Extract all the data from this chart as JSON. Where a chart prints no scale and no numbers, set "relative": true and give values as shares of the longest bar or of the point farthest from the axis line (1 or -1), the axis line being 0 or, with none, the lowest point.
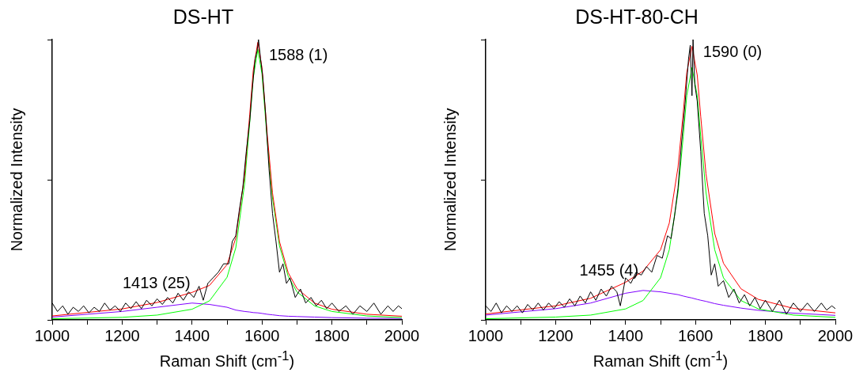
{
  "chart_data": [
    {
      "type": "line",
      "title": "DS-HT",
      "xlabel": "Raman Shift (cm$^{-1}$)",
      "ylabel": "Normalized Intensity",
      "relative": true,
      "grid": false,
      "legend": false,
      "marker": "none",
      "line_style": "solid",
      "xlim": [
        1000,
        2000
      ],
      "xticks": [
        1000,
        {
          "value": 1100,
          "label": null
        },
        1200,
        {
          "value": 1300,
          "label": null
        },
        1400,
        {
          "value": 1500,
          "label": null
        },
        1600,
        {
          "value": 1700,
          "label": null
        },
        1800,
        {
          "value": 1900,
          "label": null
        },
        2000
      ],
      "annotations": [
        {
          "text": "1588 (1)",
          "x": 1588,
          "y": 0.965
        },
        {
          "text": "1413 (25)",
          "x": 1413,
          "y": 0.06
        }
      ],
      "series": [
        {
          "color": "#000000",
          "x": [
            1000,
            1015,
            1030,
            1045,
            1060,
            1075,
            1090,
            1105,
            1120,
            1135,
            1150,
            1165,
            1180,
            1195,
            1210,
            1225,
            1240,
            1255,
            1270,
            1285,
            1300,
            1315,
            1330,
            1345,
            1360,
            1375,
            1390,
            1405,
            1420,
            1432,
            1445,
            1460,
            1475,
            1490,
            1505,
            1515,
            1525,
            1535,
            1545,
            1555,
            1565,
            1572,
            1580,
            1586,
            1590,
            1596,
            1602,
            1610,
            1620,
            1630,
            1640,
            1650,
            1660,
            1670,
            1680,
            1695,
            1710,
            1725,
            1740,
            1755,
            1770,
            1785,
            1800,
            1820,
            1840,
            1860,
            1880,
            1900,
            1920,
            1940,
            1960,
            1975,
            1990,
            2000
          ],
          "values": [
            0.06,
            0.03,
            0.05,
            0.02,
            0.045,
            0.03,
            0.05,
            0.025,
            0.045,
            0.03,
            0.06,
            0.035,
            0.05,
            0.03,
            0.06,
            0.04,
            0.065,
            0.04,
            0.07,
            0.05,
            0.075,
            0.055,
            0.08,
            0.06,
            0.095,
            0.07,
            0.1,
            0.08,
            0.12,
            0.07,
            0.13,
            0.15,
            0.17,
            0.2,
            0.2,
            0.28,
            0.3,
            0.39,
            0.47,
            0.6,
            0.71,
            0.82,
            0.93,
            0.96,
            1.0,
            0.93,
            0.87,
            0.74,
            0.54,
            0.38,
            0.28,
            0.17,
            0.2,
            0.13,
            0.15,
            0.08,
            0.11,
            0.06,
            0.08,
            0.05,
            0.07,
            0.04,
            0.06,
            0.03,
            0.05,
            0.02,
            0.05,
            0.03,
            0.06,
            0.02,
            0.05,
            0.03,
            0.05,
            0.04
          ]
        },
        {
          "color": "#ff0000",
          "x": [
            1000,
            1200,
            1300,
            1400,
            1450,
            1500,
            1525,
            1550,
            1565,
            1575,
            1588,
            1600,
            1615,
            1630,
            1650,
            1675,
            1700,
            1750,
            1800,
            1900,
            2000
          ],
          "values": [
            0.014,
            0.039,
            0.062,
            0.098,
            0.123,
            0.197,
            0.292,
            0.513,
            0.734,
            0.89,
            0.99,
            0.9,
            0.661,
            0.453,
            0.279,
            0.168,
            0.112,
            0.06,
            0.038,
            0.02,
            0.013
          ]
        },
        {
          "color": "#00ff00",
          "x": [
            1000,
            1200,
            1300,
            1400,
            1450,
            1500,
            1525,
            1550,
            1565,
            1575,
            1588,
            1600,
            1615,
            1630,
            1650,
            1675,
            1700,
            1750,
            1800,
            1900,
            2000
          ],
          "values": [
            0.004,
            0.009,
            0.017,
            0.038,
            0.068,
            0.152,
            0.257,
            0.483,
            0.706,
            0.864,
            0.965,
            0.877,
            0.641,
            0.435,
            0.264,
            0.155,
            0.1,
            0.05,
            0.03,
            0.014,
            0.008
          ]
        },
        {
          "color": "#8000ff",
          "x": [
            1000,
            1200,
            1300,
            1400,
            1450,
            1500,
            1525,
            1550,
            1565,
            1575,
            1588,
            1600,
            1615,
            1630,
            1650,
            1675,
            1700,
            1750,
            1800,
            1900,
            2000
          ],
          "values": [
            0.01,
            0.03,
            0.045,
            0.06,
            0.055,
            0.045,
            0.035,
            0.03,
            0.028,
            0.026,
            0.025,
            0.023,
            0.02,
            0.018,
            0.015,
            0.013,
            0.012,
            0.01,
            0.008,
            0.006,
            0.005
          ]
        }
      ]
    },
    {
      "type": "line",
      "title": "DS-HT-80-CH",
      "xlabel": "Raman Shift (cm$^{-1}$)",
      "ylabel": "Normalized Intensity",
      "relative": true,
      "grid": false,
      "legend": false,
      "marker": "none",
      "line_style": "solid",
      "xlim": [
        1000,
        2000
      ],
      "xticks": [
        1000,
        {
          "value": 1100,
          "label": null
        },
        1200,
        {
          "value": 1300,
          "label": null
        },
        1400,
        {
          "value": 1500,
          "label": null
        },
        1600,
        {
          "value": 1700,
          "label": null
        },
        1800,
        {
          "value": 1900,
          "label": null
        },
        2000
      ],
      "annotations": [
        {
          "text": "1590 (0)",
          "x": 1590,
          "y": 0.976
        },
        {
          "text": "1455 (4)",
          "x": 1455,
          "y": 0.105
        }
      ],
      "series": [
        {
          "color": "#000000",
          "x": [
            1000,
            1015,
            1030,
            1045,
            1060,
            1075,
            1090,
            1105,
            1120,
            1135,
            1150,
            1165,
            1180,
            1195,
            1210,
            1225,
            1240,
            1255,
            1270,
            1285,
            1300,
            1315,
            1330,
            1345,
            1360,
            1375,
            1385,
            1400,
            1415,
            1430,
            1445,
            1460,
            1475,
            1490,
            1505,
            1520,
            1530,
            1540,
            1550,
            1560,
            1570,
            1580,
            1585,
            1590,
            1593,
            1598,
            1605,
            1615,
            1625,
            1635,
            1645,
            1655,
            1665,
            1680,
            1695,
            1710,
            1725,
            1740,
            1755,
            1770,
            1785,
            1800,
            1820,
            1840,
            1860,
            1880,
            1900,
            1920,
            1940,
            1960,
            1975,
            1990,
            2000
          ],
          "values": [
            0.05,
            0.03,
            0.06,
            0.025,
            0.05,
            0.03,
            0.05,
            0.025,
            0.055,
            0.035,
            0.06,
            0.035,
            0.06,
            0.04,
            0.065,
            0.045,
            0.075,
            0.05,
            0.085,
            0.06,
            0.1,
            0.07,
            0.11,
            0.085,
            0.12,
            0.1,
            0.05,
            0.15,
            0.13,
            0.17,
            0.16,
            0.19,
            0.17,
            0.23,
            0.22,
            0.3,
            0.29,
            0.37,
            0.47,
            0.63,
            0.77,
            0.93,
            0.98,
            0.8,
            1.0,
            0.84,
            0.78,
            0.6,
            0.38,
            0.3,
            0.16,
            0.2,
            0.12,
            0.14,
            0.08,
            0.11,
            0.06,
            0.09,
            0.05,
            0.08,
            0.04,
            0.07,
            0.03,
            0.07,
            0.02,
            0.06,
            0.03,
            0.06,
            0.03,
            0.06,
            0.035,
            0.05,
            0.04
          ]
        },
        {
          "color": "#ff0000",
          "x": [
            1000,
            1200,
            1300,
            1400,
            1450,
            1500,
            1525,
            1550,
            1565,
            1575,
            1590,
            1605,
            1615,
            1630,
            1655,
            1680,
            1730,
            1780,
            1880,
            2000
          ],
          "values": [
            0.021,
            0.05,
            0.077,
            0.134,
            0.174,
            0.25,
            0.345,
            0.545,
            0.74,
            0.882,
            0.976,
            0.873,
            0.725,
            0.521,
            0.308,
            0.202,
            0.111,
            0.073,
            0.041,
            0.025
          ]
        },
        {
          "color": "#00ff00",
          "x": [
            1000,
            1200,
            1300,
            1400,
            1450,
            1500,
            1525,
            1550,
            1565,
            1575,
            1590,
            1605,
            1615,
            1630,
            1655,
            1680,
            1730,
            1780,
            1880,
            2000
          ],
          "values": [
            0.004,
            0.01,
            0.017,
            0.039,
            0.069,
            0.15,
            0.25,
            0.455,
            0.655,
            0.8,
            0.9,
            0.8,
            0.655,
            0.455,
            0.25,
            0.15,
            0.069,
            0.039,
            0.017,
            0.009
          ]
        },
        {
          "color": "#8000ff",
          "x": [
            1000,
            1200,
            1300,
            1400,
            1450,
            1500,
            1525,
            1550,
            1565,
            1575,
            1590,
            1605,
            1615,
            1630,
            1655,
            1680,
            1730,
            1780,
            1880,
            2000
          ],
          "values": [
            0.017,
            0.04,
            0.06,
            0.095,
            0.105,
            0.1,
            0.095,
            0.09,
            0.085,
            0.082,
            0.078,
            0.073,
            0.07,
            0.066,
            0.058,
            0.052,
            0.042,
            0.034,
            0.024,
            0.016
          ]
        }
      ]
    }
  ]
}
